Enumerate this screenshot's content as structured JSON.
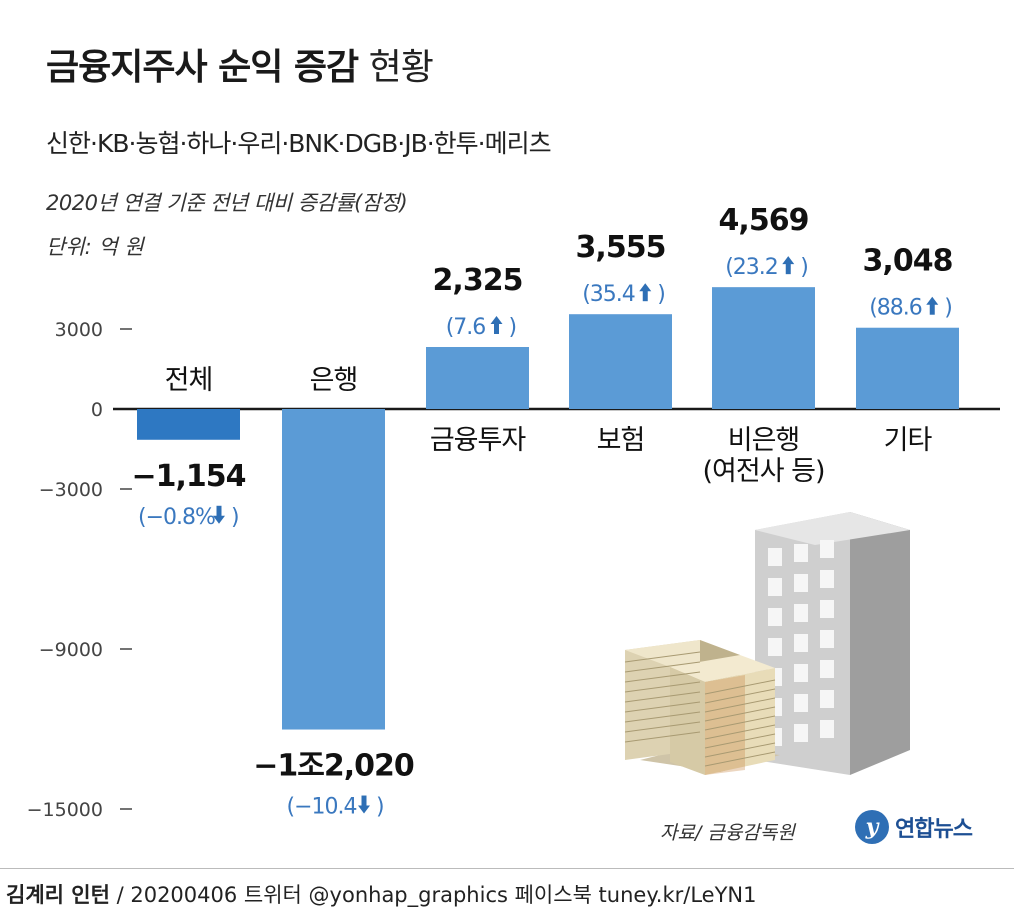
{
  "title": {
    "bold": "금융지주사 순익 증감",
    "light": "현황"
  },
  "subtitle": "신한·KB·농협·하나·우리·BNK·DGB·JB·한투·메리츠",
  "basis_note": "2020년 연결 기준 전년 대비 증감률(잠정)",
  "unit_note": "단위: 억 원",
  "source": "자료/ 금융감독원",
  "logo": {
    "mark": "y",
    "text": "연합뉴스"
  },
  "footer": {
    "author": "김계리 인턴",
    "rest": " / 20200406  트위터 @yonhap_graphics  페이스북 tuney.kr/LeYN1"
  },
  "colors": {
    "bar_negative_total": "#2e78c2",
    "bar_default": "#5b9bd6",
    "pct_text": "#3a78bf",
    "arrow": "#2e6fb5"
  },
  "chart_data": {
    "type": "bar",
    "categories": [
      "전체",
      "은행",
      "금융투자",
      "보험",
      "비은행\n(여전사 등)",
      "기타"
    ],
    "values": [
      -1154,
      -12020,
      2325,
      3555,
      4569,
      3048
    ],
    "value_labels": [
      "−1,154",
      "−1조2,020",
      "2,325",
      "3,555",
      "4,569",
      "3,048"
    ],
    "pct_labels": [
      "−0.8%",
      "−10.4",
      "7.6",
      "35.4",
      "23.2",
      "88.6"
    ],
    "pct_direction": [
      "down",
      "down",
      "up",
      "up",
      "up",
      "up"
    ],
    "y_ticks": [
      3000,
      0,
      -3000,
      -9000,
      -15000
    ],
    "y_tick_labels": [
      "3000",
      "0",
      "−3000",
      "−9000",
      "−15000"
    ],
    "ylim": [
      -15000,
      4569
    ],
    "title": "",
    "xlabel": "",
    "ylabel": ""
  },
  "illustration": {
    "building": "office-building-icon",
    "money": "cash-stack-icon"
  }
}
